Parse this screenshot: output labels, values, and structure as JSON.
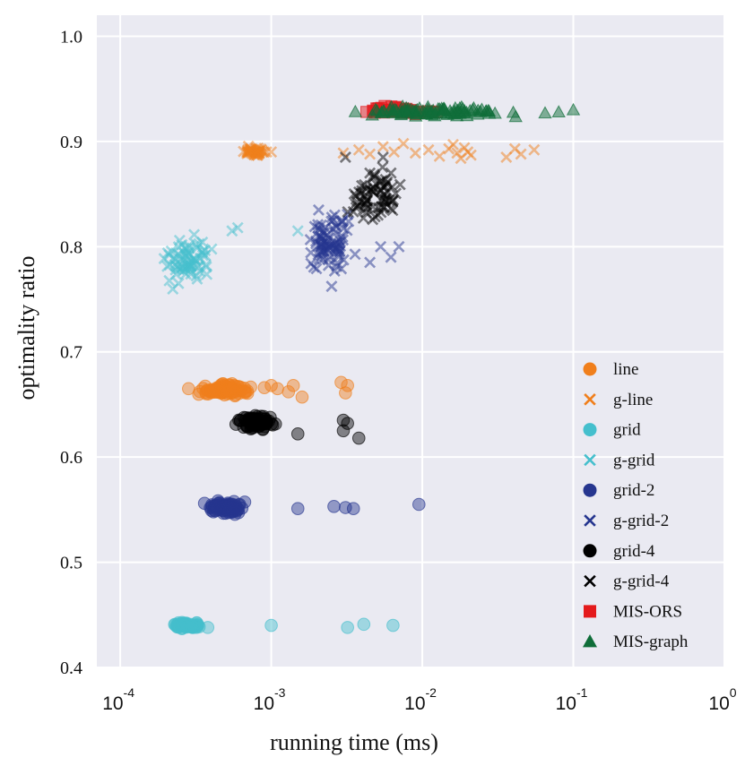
{
  "chart_data": {
    "type": "scatter",
    "title": "",
    "xlabel": "running time (ms)",
    "ylabel": "optimality ratio",
    "xscale": "log",
    "xlim": [
      7e-05,
      1.0
    ],
    "ylim": [
      0.4,
      1.02
    ],
    "grid": true,
    "legend_position": "lower-right",
    "x_ticks": [
      {
        "value": 0.0001,
        "base": "10",
        "exp": "-4"
      },
      {
        "value": 0.001,
        "base": "10",
        "exp": "-3"
      },
      {
        "value": 0.01,
        "base": "10",
        "exp": "-2"
      },
      {
        "value": 0.1,
        "base": "10",
        "exp": "-1"
      },
      {
        "value": 1.0,
        "base": "10",
        "exp": "0"
      }
    ],
    "y_ticks": [
      {
        "value": 0.4,
        "label": "0.4"
      },
      {
        "value": 0.5,
        "label": "0.5"
      },
      {
        "value": 0.6,
        "label": "0.6"
      },
      {
        "value": 0.7,
        "label": "0.7"
      },
      {
        "value": 0.8,
        "label": "0.8"
      },
      {
        "value": 0.9,
        "label": "0.9"
      },
      {
        "value": 1.0,
        "label": "1.0"
      }
    ],
    "series": [
      {
        "name": "line",
        "marker": "circle",
        "color": "#f07f1c",
        "x_range": [
          0.00028,
          0.00085
        ],
        "y_range": [
          0.655,
          0.672
        ],
        "count": 90,
        "seed": 11,
        "extra": [
          [
            0.0009,
            0.666
          ],
          [
            0.001,
            0.668
          ],
          [
            0.0011,
            0.665
          ],
          [
            0.0013,
            0.662
          ],
          [
            0.0014,
            0.668
          ],
          [
            0.0016,
            0.657
          ],
          [
            0.0029,
            0.671
          ],
          [
            0.0032,
            0.668
          ],
          [
            0.0031,
            0.661
          ]
        ]
      },
      {
        "name": "g-line",
        "marker": "x",
        "color": "#f07f1c",
        "x_range": [
          0.0006,
          0.00105
        ],
        "y_range": [
          0.883,
          0.897
        ],
        "count": 45,
        "seed": 12,
        "extra": [
          [
            0.003,
            0.889
          ],
          [
            0.0038,
            0.892
          ],
          [
            0.0045,
            0.888
          ],
          [
            0.0055,
            0.895
          ],
          [
            0.0065,
            0.89
          ],
          [
            0.0075,
            0.898
          ],
          [
            0.009,
            0.889
          ],
          [
            0.011,
            0.892
          ],
          [
            0.013,
            0.886
          ],
          [
            0.015,
            0.893
          ],
          [
            0.017,
            0.889
          ],
          [
            0.019,
            0.894
          ],
          [
            0.021,
            0.887
          ],
          [
            0.016,
            0.897
          ],
          [
            0.018,
            0.884
          ],
          [
            0.02,
            0.89
          ],
          [
            0.045,
            0.888
          ],
          [
            0.055,
            0.892
          ],
          [
            0.036,
            0.885
          ],
          [
            0.041,
            0.893
          ]
        ]
      },
      {
        "name": "grid",
        "marker": "circle",
        "color": "#45bfcd",
        "x_range": [
          0.00021,
          0.00036
        ],
        "y_range": [
          0.436,
          0.444
        ],
        "count": 70,
        "seed": 13,
        "extra": [
          [
            0.001,
            0.44
          ],
          [
            0.0032,
            0.438
          ],
          [
            0.0041,
            0.441
          ],
          [
            0.0064,
            0.44
          ],
          [
            0.00038,
            0.438
          ]
        ]
      },
      {
        "name": "g-grid",
        "marker": "x",
        "color": "#45bfcd",
        "x_range": [
          0.00017,
          0.00046
        ],
        "y_range": [
          0.755,
          0.82
        ],
        "count": 75,
        "seed": 14,
        "extra": [
          [
            0.00055,
            0.815
          ],
          [
            0.0015,
            0.815
          ],
          [
            0.0006,
            0.818
          ]
        ]
      },
      {
        "name": "grid-2",
        "marker": "circle",
        "color": "#26368f",
        "x_range": [
          0.00035,
          0.00072
        ],
        "y_range": [
          0.543,
          0.561
        ],
        "count": 80,
        "seed": 15,
        "extra": [
          [
            0.0015,
            0.551
          ],
          [
            0.0026,
            0.553
          ],
          [
            0.0031,
            0.552
          ],
          [
            0.0035,
            0.551
          ],
          [
            0.0095,
            0.555
          ]
        ]
      },
      {
        "name": "g-grid-2",
        "marker": "x",
        "color": "#26368f",
        "x_range": [
          0.0015,
          0.0038
        ],
        "y_range": [
          0.755,
          0.855
        ],
        "count": 90,
        "seed": 16,
        "extra": [
          [
            0.0045,
            0.785
          ],
          [
            0.0053,
            0.8
          ],
          [
            0.0062,
            0.79
          ],
          [
            0.007,
            0.8
          ]
        ]
      },
      {
        "name": "grid-4",
        "marker": "circle",
        "color": "#000000",
        "x_range": [
          0.00055,
          0.00115
        ],
        "y_range": [
          0.624,
          0.642
        ],
        "count": 80,
        "seed": 17,
        "extra": [
          [
            0.0015,
            0.622
          ],
          [
            0.003,
            0.635
          ],
          [
            0.003,
            0.625
          ],
          [
            0.0038,
            0.618
          ],
          [
            0.0032,
            0.632
          ]
        ]
      },
      {
        "name": "g-grid-4",
        "marker": "x",
        "color": "#000000",
        "x_range": [
          0.0025,
          0.0085
        ],
        "y_range": [
          0.818,
          0.883
        ],
        "count": 70,
        "seed": 18,
        "extra": [
          [
            0.0055,
            0.885
          ],
          [
            0.0062,
            0.87
          ],
          [
            0.0045,
            0.87
          ],
          [
            0.0031,
            0.885
          ]
        ]
      },
      {
        "name": "MIS-ORS",
        "marker": "square",
        "color": "#e41a1c",
        "x_range": [
          0.003,
          0.018
        ],
        "y_range": [
          0.923,
          0.936
        ],
        "count": 40,
        "seed": 19,
        "extra": []
      },
      {
        "name": "MIS-graph",
        "marker": "triangle",
        "color": "#0f6d39",
        "x_range": [
          0.0025,
          0.055
        ],
        "y_range": [
          0.922,
          0.935
        ],
        "count": 90,
        "seed": 20,
        "extra": [
          [
            0.08,
            0.928
          ],
          [
            0.1,
            0.93
          ],
          [
            0.065,
            0.927
          ]
        ]
      }
    ]
  }
}
